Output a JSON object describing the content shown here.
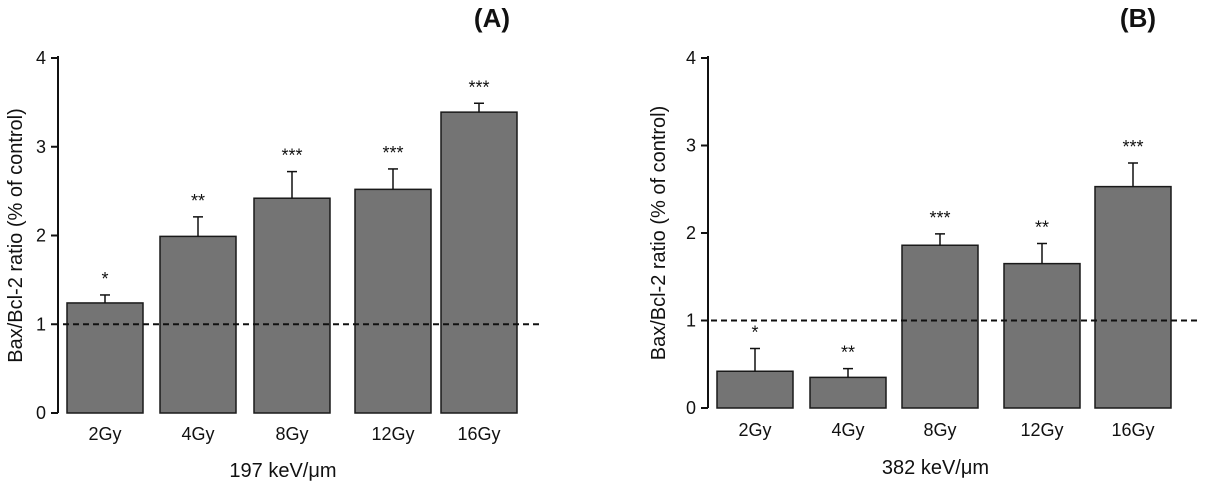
{
  "chart_data": [
    {
      "type": "bar",
      "panel_label": "(A)",
      "categories": [
        "2Gy",
        "4Gy",
        "8Gy",
        "12Gy",
        "16Gy"
      ],
      "values": [
        1.24,
        1.99,
        2.42,
        2.52,
        3.39
      ],
      "errors": [
        0.09,
        0.22,
        0.3,
        0.23,
        0.1
      ],
      "significance": [
        "*",
        "**",
        "***",
        "***",
        "***"
      ],
      "xlabel": "197 keV/μm",
      "ylabel": "Bax/Bcl-2 ratio (% of control)",
      "ylim": [
        0,
        4
      ],
      "yticks": [
        0,
        1,
        2,
        3,
        4
      ],
      "reference_line": 1,
      "bar_color": "#747474",
      "grid": false
    },
    {
      "type": "bar",
      "panel_label": "(B)",
      "categories": [
        "2Gy",
        "4Gy",
        "8Gy",
        "12Gy",
        "16Gy"
      ],
      "values": [
        0.42,
        0.35,
        1.86,
        1.65,
        2.53
      ],
      "errors": [
        0.26,
        0.1,
        0.13,
        0.23,
        0.27
      ],
      "significance": [
        "*",
        "**",
        "***",
        "**",
        "***"
      ],
      "xlabel": "382 keV/μm",
      "ylabel": "Bax/Bcl-2 ratio (% of control)",
      "ylim": [
        0,
        4
      ],
      "yticks": [
        0,
        1,
        2,
        3,
        4
      ],
      "reference_line": 1,
      "bar_color": "#747474",
      "grid": false
    }
  ]
}
